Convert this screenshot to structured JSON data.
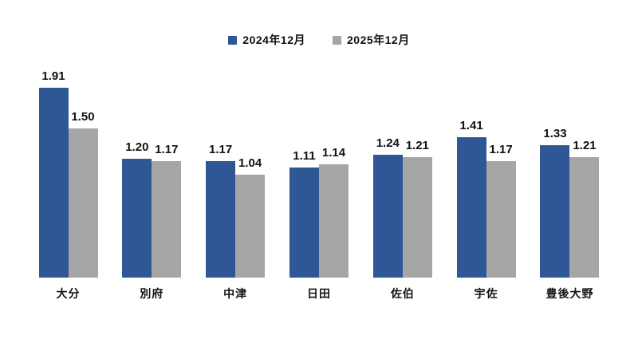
{
  "chart_data": {
    "type": "bar",
    "title": "",
    "xlabel": "",
    "ylabel": "",
    "categories": [
      "大分",
      "別府",
      "中津",
      "日田",
      "佐伯",
      "宇佐",
      "豊後大野"
    ],
    "series": [
      {
        "name": "2024年12月",
        "color": "#2f5795",
        "values": [
          1.91,
          1.2,
          1.17,
          1.11,
          1.24,
          1.41,
          1.33
        ]
      },
      {
        "name": "2025年12月",
        "color": "#a6a6a6",
        "values": [
          1.5,
          1.17,
          1.04,
          1.14,
          1.21,
          1.17,
          1.21
        ]
      }
    ],
    "ylim": [
      0,
      2.0
    ],
    "grid": false,
    "axis_lines": false,
    "legend_position": "top-center",
    "value_label_decimals": 2,
    "background_color": "#ffffff",
    "text_color": "#111111"
  }
}
